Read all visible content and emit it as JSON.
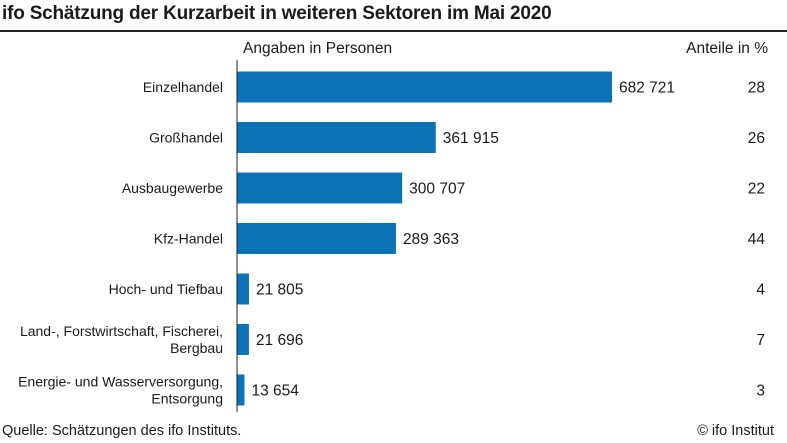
{
  "title": "ifo Schätzung der Kurzarbeit in weiteren Sektoren im Mai 2020",
  "header": {
    "left": "Angaben in Personen",
    "right": "Anteile in %"
  },
  "footer": {
    "source": "Quelle: Schätzungen des ifo Instituts.",
    "copyright": "© ifo Institut"
  },
  "colors": {
    "bar": "#0b73b8",
    "axis": "#222222"
  },
  "chart_data": {
    "type": "bar",
    "orientation": "horizontal",
    "categories": [
      [
        "Einzelhandel"
      ],
      [
        "Großhandel"
      ],
      [
        "Ausbaugewerbe"
      ],
      [
        "Kfz-Handel"
      ],
      [
        "Hoch- und Tiefbau"
      ],
      [
        "Land-, Forstwirtschaft, Fischerei,",
        "Bergbau"
      ],
      [
        "Energie- und Wasserversorgung,",
        "Entsorgung"
      ]
    ],
    "values": [
      682721,
      361915,
      300707,
      289363,
      21805,
      21696,
      13654
    ],
    "value_labels": [
      "682 721",
      "361 915",
      "300 707",
      "289 363",
      "21 805",
      "21 696",
      "13 654"
    ],
    "shares_percent": [
      28,
      26,
      22,
      44,
      4,
      7,
      3
    ],
    "share_labels": [
      "28",
      "26",
      "22",
      "44",
      "4",
      "7",
      "3"
    ],
    "xlim": [
      0,
      682721
    ],
    "grid": false,
    "legend": "none"
  }
}
